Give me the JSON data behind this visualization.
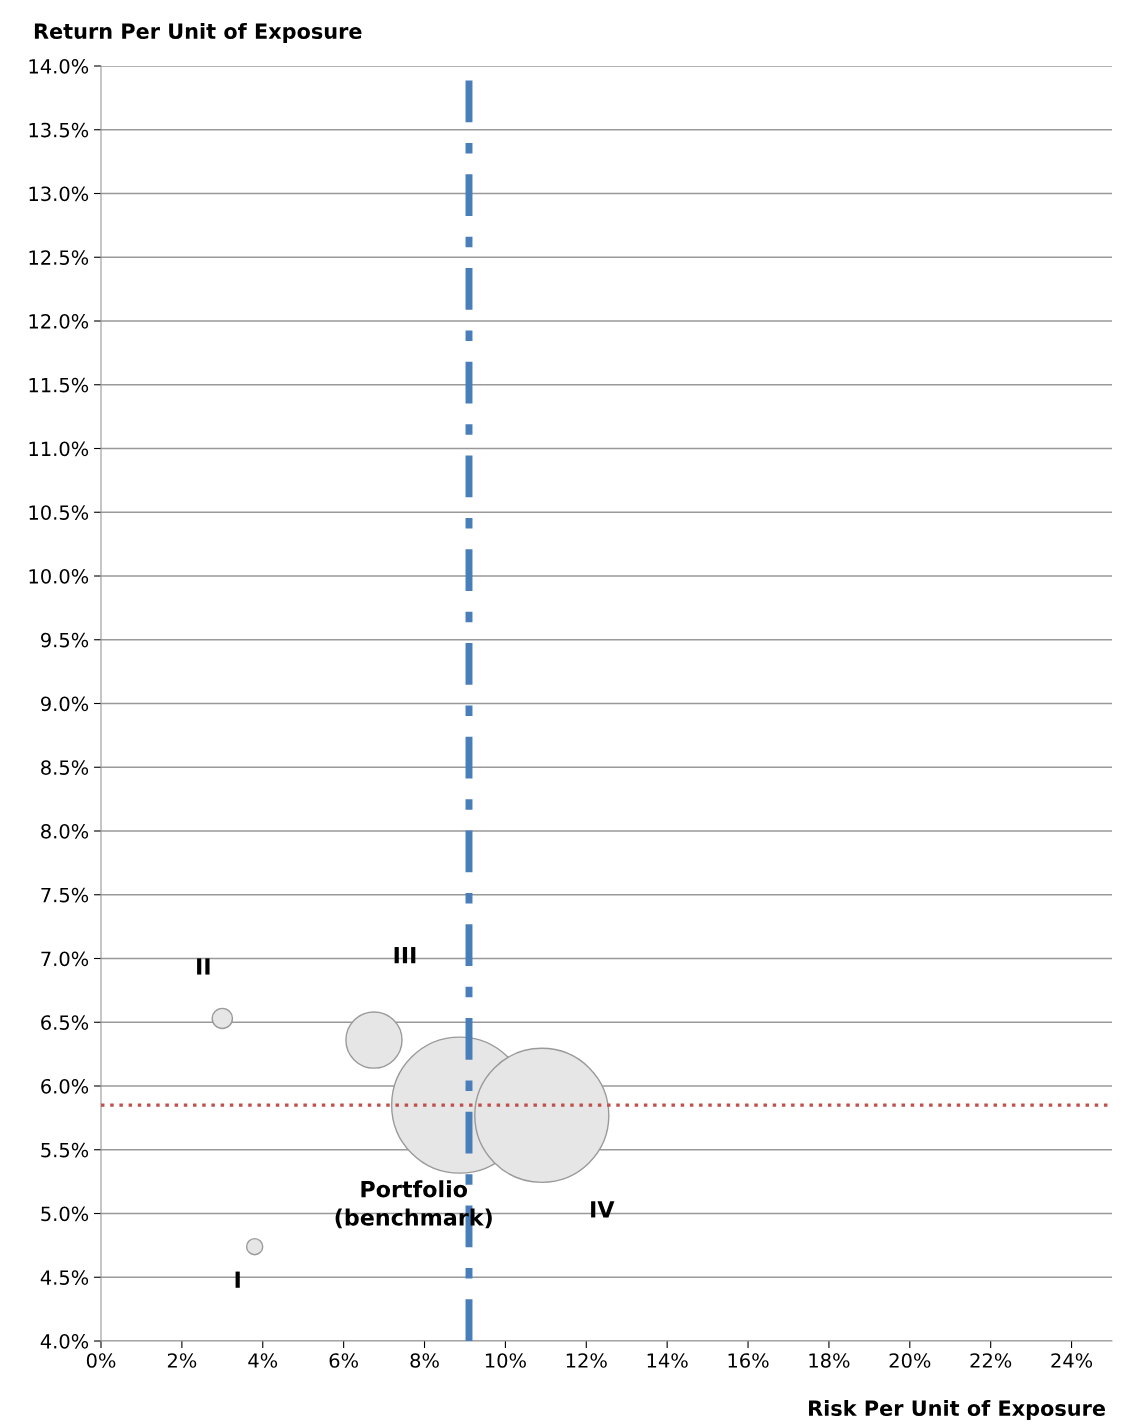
{
  "chart_data": {
    "type": "bubble",
    "xlabel": "Risk Per Unit of Exposure",
    "ylabel": "Return Per Unit of Exposure",
    "series": [
      {
        "name": "II",
        "x": [
          3.0
        ],
        "values": [
          6.53
        ],
        "sizes": [
          0.022
        ],
        "color": "#e6e6e6"
      },
      {
        "name": "I",
        "x": [
          3.8
        ],
        "values": [
          4.74
        ],
        "sizes": [
          0.014
        ],
        "color": "#e6e6e6"
      },
      {
        "name": "III",
        "x": [
          6.75
        ],
        "values": [
          6.36
        ],
        "sizes": [
          0.17
        ],
        "color": "#e6e6e6"
      },
      {
        "name": "Portfolio\n(benchmark)",
        "x": [
          8.87
        ],
        "values": [
          5.85
        ],
        "sizes": [
          1
        ],
        "color": "#e6e6e6"
      },
      {
        "name": "IV",
        "x": [
          10.9
        ],
        "values": [
          5.77
        ],
        "sizes": [
          0.97
        ],
        "color": "#e6e6e6"
      }
    ],
    "xlim": [
      0,
      25
    ],
    "ylim": [
      4.0,
      14.0
    ],
    "xticks": [
      {
        "value": 0,
        "label": "0%"
      },
      {
        "value": 2,
        "label": "2%"
      },
      {
        "value": 4,
        "label": "4%"
      },
      {
        "value": 6,
        "label": "6%"
      },
      {
        "value": 8,
        "label": "8%"
      },
      {
        "value": 10,
        "label": "10%"
      },
      {
        "value": 12,
        "label": "12%"
      },
      {
        "value": 14,
        "label": "14%"
      },
      {
        "value": 16,
        "label": "16%"
      },
      {
        "value": 18,
        "label": "18%"
      },
      {
        "value": 20,
        "label": "20%"
      },
      {
        "value": 22,
        "label": "22%"
      },
      {
        "value": 24,
        "label": "24%"
      }
    ],
    "yticks": [
      {
        "value": 4.0,
        "label": "4.0%"
      },
      {
        "value": 4.5,
        "label": "4.5%"
      },
      {
        "value": 5.0,
        "label": "5.0%"
      },
      {
        "value": 5.5,
        "label": "5.5%"
      },
      {
        "value": 6.0,
        "label": "6.0%"
      },
      {
        "value": 6.5,
        "label": "6.5%"
      },
      {
        "value": 7.0,
        "label": "7.0%"
      },
      {
        "value": 7.5,
        "label": "7.5%"
      },
      {
        "value": 8.0,
        "label": "8.0%"
      },
      {
        "value": 8.5,
        "label": "8.5%"
      },
      {
        "value": 9.0,
        "label": "9.0%"
      },
      {
        "value": 9.5,
        "label": "9.5%"
      },
      {
        "value": 10.0,
        "label": "10.0%"
      },
      {
        "value": 10.5,
        "label": "10.5%"
      },
      {
        "value": 11.0,
        "label": "11.0%"
      },
      {
        "value": 11.5,
        "label": "11.5%"
      },
      {
        "value": 12.0,
        "label": "12.0%"
      },
      {
        "value": 12.5,
        "label": "12.5%"
      },
      {
        "value": 13.0,
        "label": "13.0%"
      },
      {
        "value": 13.5,
        "label": "13.5%"
      },
      {
        "value": 14.0,
        "label": "14.0%"
      }
    ],
    "grid": "y",
    "ref_lines": [
      {
        "axis": "x",
        "value": 9.1,
        "color": "#4a7ebb",
        "line_style": "dashed"
      },
      {
        "axis": "y",
        "value": 5.85,
        "color": "#c0504d",
        "line_style": "dotted"
      }
    ]
  }
}
